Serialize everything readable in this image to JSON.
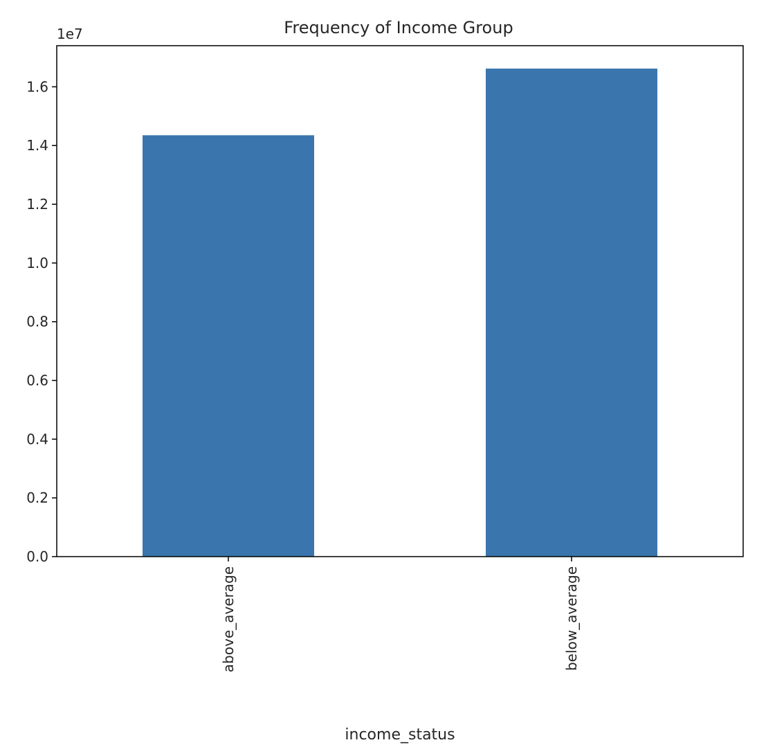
{
  "chart_data": {
    "type": "bar",
    "title": "Frequency of Income Group",
    "xlabel": "income_status",
    "ylabel": "",
    "categories": [
      "above_average",
      "below_average"
    ],
    "values": [
      14350000,
      16620000
    ],
    "ylim": [
      0,
      17400000
    ],
    "yticks": [
      0,
      2000000,
      4000000,
      6000000,
      8000000,
      10000000,
      12000000,
      14000000,
      16000000
    ],
    "ytick_labels": [
      "0.0",
      "0.2",
      "0.4",
      "0.6",
      "0.8",
      "1.0",
      "1.2",
      "1.4",
      "1.6"
    ],
    "offset_label": "1e7",
    "bar_color": "#3a76ad",
    "grid": false,
    "legend": "none"
  }
}
